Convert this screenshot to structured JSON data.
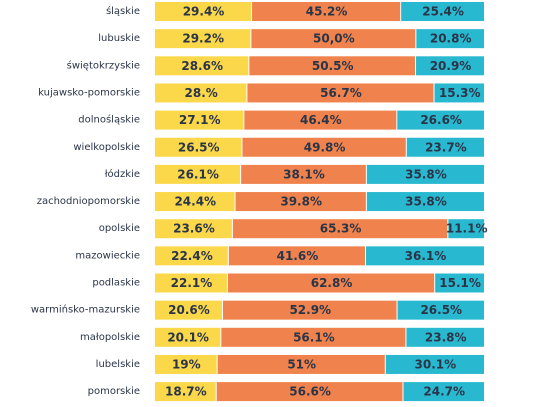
{
  "chart_data": {
    "type": "bar",
    "orientation": "horizontal",
    "stacked": true,
    "normalized": true,
    "categories": [
      "śląskie",
      "lubuskie",
      "świętokrzyskie",
      "kujawsko-pomorskie",
      "dolnośląskie",
      "wielkopolskie",
      "łódzkie",
      "zachodniopomorskie",
      "opolskie",
      "mazowieckie",
      "podlaskie",
      "warmińsko-mazurskie",
      "małopolskie",
      "lubelskie",
      "pomorskie"
    ],
    "series": [
      {
        "color": "#fbd84a",
        "values": [
          29.4,
          29.2,
          28.6,
          28.0,
          27.1,
          26.5,
          26.1,
          24.4,
          23.6,
          22.4,
          22.1,
          20.6,
          20.1,
          19.0,
          18.7
        ],
        "labels": [
          "29.4%",
          "29.2%",
          "28.6%",
          "28.%",
          "27.1%",
          "26.5%",
          "26.1%",
          "24.4%",
          "23.6%",
          "22.4%",
          "22.1%",
          "20.6%",
          "20.1%",
          "19%",
          "18.7%"
        ]
      },
      {
        "color": "#f0834d",
        "values": [
          45.2,
          50.0,
          50.5,
          56.7,
          46.4,
          49.8,
          38.1,
          39.8,
          65.3,
          41.6,
          62.8,
          52.9,
          56.1,
          51.0,
          56.6
        ],
        "labels": [
          "45.2%",
          "50,0%",
          "50.5%",
          "56.7%",
          "46.4%",
          "49.8%",
          "38.1%",
          "39.8%",
          "65.3%",
          "41.6%",
          "62.8%",
          "52.9%",
          "56.1%",
          "51%",
          "56.6%"
        ]
      },
      {
        "color": "#28b8cf",
        "values": [
          25.4,
          20.8,
          20.9,
          15.3,
          26.6,
          23.7,
          35.8,
          35.8,
          11.1,
          36.1,
          15.1,
          26.5,
          23.8,
          30.1,
          24.7
        ],
        "labels": [
          "25.4%",
          "20.8%",
          "20.9%",
          "15.3%",
          "26.6%",
          "23.7%",
          "35.8%",
          "35.8%",
          "11.1%",
          "36.1%",
          "15.1%",
          "26.5%",
          "23.8%",
          "30.1%",
          "24.7%"
        ]
      }
    ]
  }
}
